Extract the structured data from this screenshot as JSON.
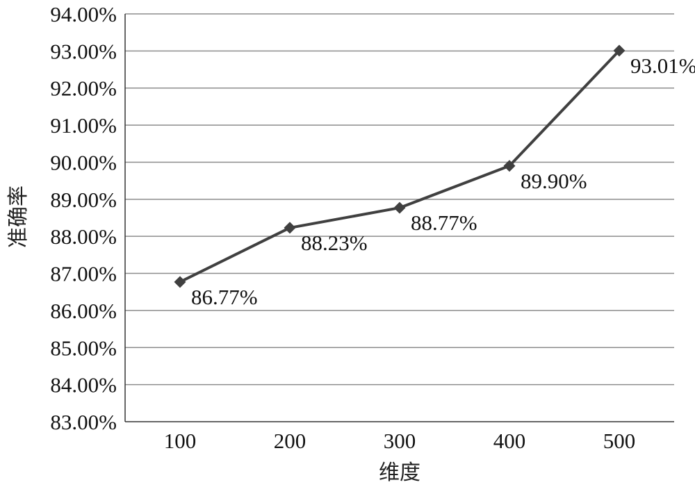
{
  "chart_data": {
    "type": "line",
    "title": "",
    "xlabel": "维度",
    "ylabel": "准确率",
    "categories": [
      "100",
      "200",
      "300",
      "400",
      "500"
    ],
    "series": [
      {
        "values": [
          86.77,
          88.23,
          88.77,
          89.9,
          93.01
        ],
        "data_labels": [
          "86.77%",
          "88.23%",
          "88.77%",
          "89.90%",
          "93.01%"
        ],
        "marker": "diamond"
      }
    ],
    "ylim": [
      83,
      94
    ],
    "ytick_step": 1,
    "y_tick_labels": [
      "83.00%",
      "84.00%",
      "85.00%",
      "86.00%",
      "87.00%",
      "88.00%",
      "89.00%",
      "90.00%",
      "91.00%",
      "92.00%",
      "93.00%",
      "94.00%"
    ],
    "grid": "horizontal",
    "legend": "none",
    "colors": {
      "line": "#404040",
      "grid": "#8c8c8c",
      "axis": "#333333"
    }
  }
}
